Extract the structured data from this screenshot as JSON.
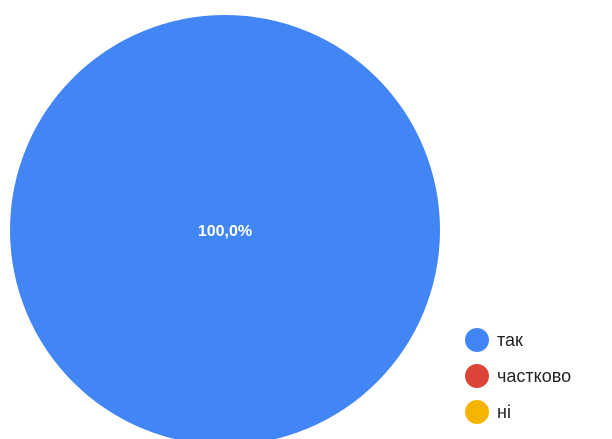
{
  "chart_data": {
    "type": "pie",
    "title": "",
    "slices": [
      {
        "label": "так",
        "value": 100.0,
        "color": "#4285f4",
        "data_label": "100,0%"
      },
      {
        "label": "частково",
        "value": 0.0,
        "color": "#db4437",
        "data_label": ""
      },
      {
        "label": "ні",
        "value": 0.0,
        "color": "#f4b400",
        "data_label": ""
      }
    ],
    "legend_position": "bottom-right"
  }
}
